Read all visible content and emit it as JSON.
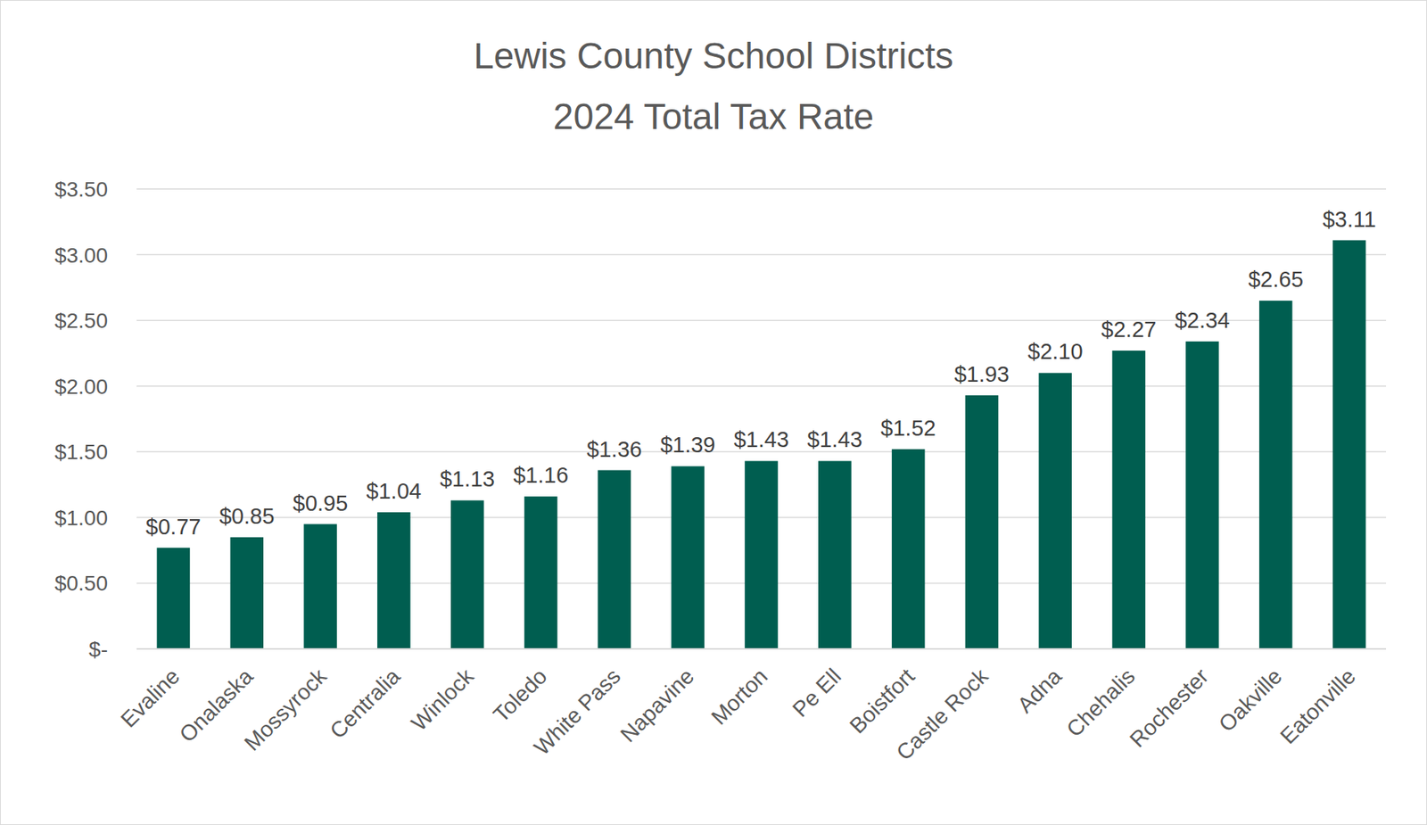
{
  "chart_data": {
    "type": "bar",
    "title": "Lewis County School Districts",
    "subtitle": "2024 Total Tax Rate",
    "categories": [
      "Evaline",
      "Onalaska",
      "Mossyrock",
      "Centralia",
      "Winlock",
      "Toledo",
      "White Pass",
      "Napavine",
      "Morton",
      "Pe Ell",
      "Boistfort",
      "Castle Rock",
      "Adna",
      "Chehalis",
      "Rochester",
      "Oakville",
      "Eatonville"
    ],
    "values": [
      0.77,
      0.85,
      0.95,
      1.04,
      1.13,
      1.16,
      1.36,
      1.39,
      1.43,
      1.43,
      1.52,
      1.93,
      2.1,
      2.27,
      2.34,
      2.65,
      3.11
    ],
    "value_labels": [
      "$0.77",
      "$0.85",
      "$0.95",
      "$1.04",
      "$1.13",
      "$1.16",
      "$1.36",
      "$1.39",
      "$1.43",
      "$1.43",
      "$1.52",
      "$1.93",
      "$2.10",
      "$2.27",
      "$2.34",
      "$2.65",
      "$3.11"
    ],
    "color": "#005e50",
    "ylim": [
      0,
      3.5
    ],
    "yticks": [
      {
        "value": 0,
        "label": "$-"
      },
      {
        "value": 0.5,
        "label": "$0.50"
      },
      {
        "value": 1,
        "label": "$1.00"
      },
      {
        "value": 1.5,
        "label": "$1.50"
      },
      {
        "value": 2,
        "label": "$2.00"
      },
      {
        "value": 2.5,
        "label": "$2.50"
      },
      {
        "value": 3,
        "label": "$3.00"
      },
      {
        "value": 3.5,
        "label": "$3.50"
      }
    ],
    "grid": true,
    "data_labels": true
  }
}
